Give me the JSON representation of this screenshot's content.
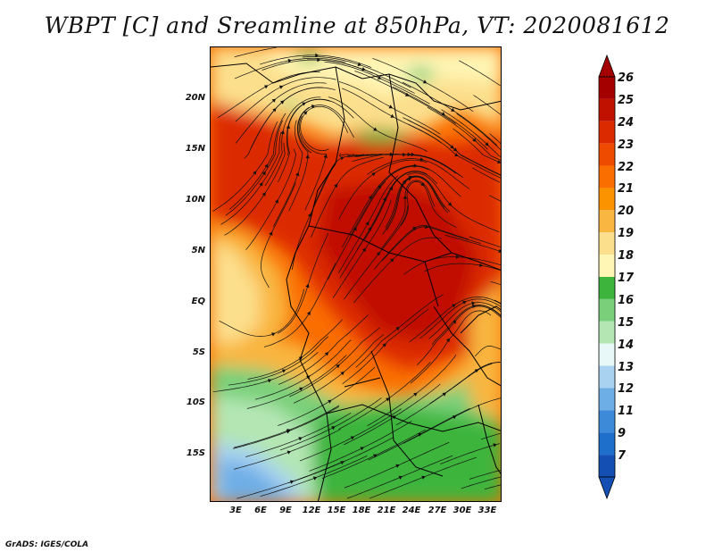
{
  "title": "WBPT [C] and Sreamline at 850hPa, VT: 2020081612",
  "credit": "GrADS: IGES/COLA",
  "lat_labels": [
    "20N",
    "15N",
    "10N",
    "5N",
    "EQ",
    "5S",
    "10S",
    "15S"
  ],
  "lon_labels": [
    "3E",
    "6E",
    "9E",
    "12E",
    "15E",
    "18E",
    "21E",
    "24E",
    "27E",
    "30E",
    "33E"
  ],
  "colorbar": {
    "levels": [
      "26",
      "25",
      "24",
      "23",
      "22",
      "21",
      "20",
      "19",
      "18",
      "17",
      "16",
      "15",
      "14",
      "13",
      "12",
      "11",
      "9",
      "7"
    ],
    "colors": [
      "#a50000",
      "#c01000",
      "#dc2a00",
      "#ee4a00",
      "#fa6e00",
      "#fb9300",
      "#f9b640",
      "#fcdf8c",
      "#fff5b4",
      "#3db53d",
      "#7ad07a",
      "#b4e6b4",
      "#e8f8f8",
      "#a8d2f0",
      "#6eaee6",
      "#3c8ad8",
      "#1e6ecc",
      "#1450b4"
    ]
  }
}
